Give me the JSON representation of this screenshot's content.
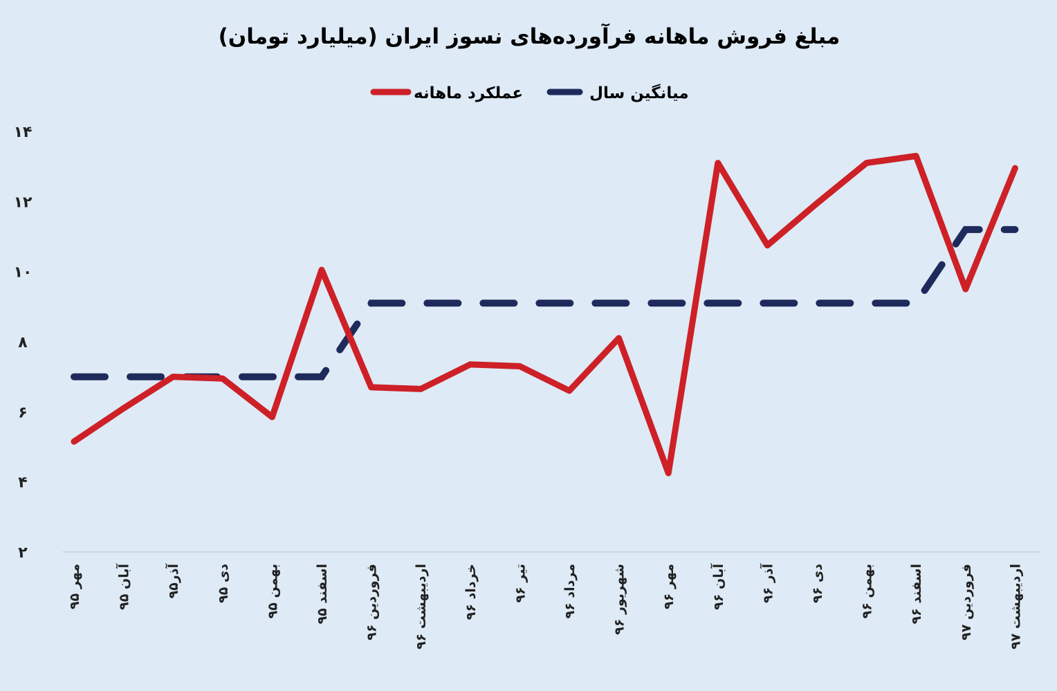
{
  "chart_data": {
    "type": "line",
    "title": "مبلغ فروش ماهانه فرآورده‌های نسوز ایران (میلیارد تومان)",
    "xlabel": "",
    "ylabel": "",
    "ylim": [
      2,
      14
    ],
    "yticks": [
      2,
      4,
      6,
      8,
      10,
      12,
      14
    ],
    "ytick_labels": [
      "۲",
      "۴",
      "۶",
      "۸",
      "۱۰",
      "۱۲",
      "۱۴"
    ],
    "grid": false,
    "legend_position": "top-center",
    "categories": [
      "مهر ۹۵",
      "آبان ۹۵",
      "آذر۹۵",
      "دی ۹۵",
      "بهمن ۹۵",
      "اسفند ۹۵",
      "فروردین ۹۶",
      "اردیبهشت ۹۶",
      "خرداد ۹۶",
      "تیر ۹۶",
      "مرداد ۹۶",
      "شهریور ۹۶",
      "مهر ۹۶",
      "آبان ۹۶",
      "آذر ۹۶",
      "دی ۹۶",
      "بهمن ۹۶",
      "اسفند ۹۶",
      "فروردین ۹۷",
      "اردیبهشت ۹۷"
    ],
    "series": [
      {
        "name": "عملکرد ماهانه",
        "color": "#cd2027",
        "style": "solid",
        "values": [
          5.15,
          6.1,
          7.0,
          6.95,
          5.85,
          10.05,
          6.7,
          6.65,
          7.35,
          7.3,
          6.6,
          8.1,
          4.25,
          13.1,
          10.75,
          11.95,
          13.1,
          13.3,
          9.5,
          12.95
        ]
      },
      {
        "name": "میانگین سال",
        "color": "#1f2a5c",
        "style": "dashed",
        "values": [
          7.0,
          7.0,
          7.0,
          7.0,
          7.0,
          7.0,
          9.1,
          9.1,
          9.1,
          9.1,
          9.1,
          9.1,
          9.1,
          9.1,
          9.1,
          9.1,
          9.1,
          9.1,
          11.2,
          11.2
        ]
      }
    ]
  }
}
